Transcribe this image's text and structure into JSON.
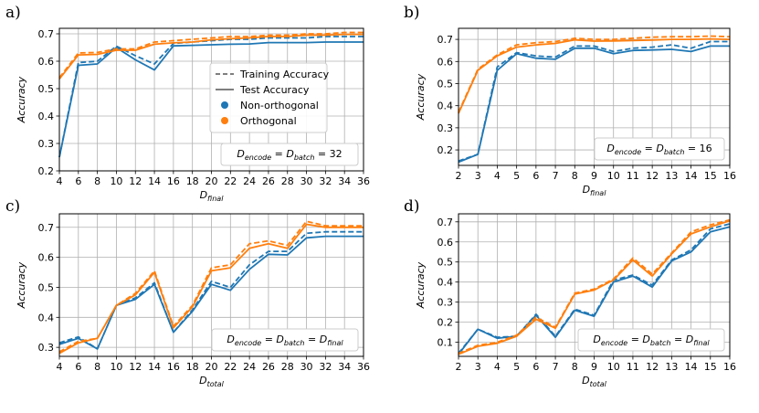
{
  "colors": {
    "blue": "#1f77b4",
    "orange": "#ff7f0e",
    "grid": "#b0b0b0"
  },
  "legend": {
    "training": "Training Accuracy",
    "test": "Test Accuracy",
    "non_orth": "Non-orthogonal",
    "orth": "Orthogonal"
  },
  "chart_data": [
    {
      "type": "line",
      "panel_label": "a)",
      "xlabel": {
        "main": "D",
        "sub": "final"
      },
      "ylabel": "Accuracy",
      "x": [
        4,
        6,
        8,
        10,
        12,
        14,
        16,
        18,
        20,
        22,
        24,
        26,
        28,
        30,
        32,
        34,
        36
      ],
      "xticks": [
        4,
        6,
        8,
        10,
        12,
        14,
        16,
        18,
        20,
        22,
        24,
        26,
        28,
        30,
        32,
        34,
        36
      ],
      "xlim": [
        4,
        36
      ],
      "ylim": [
        0.2,
        0.72
      ],
      "yticks": [
        0.2,
        0.3,
        0.4,
        0.5,
        0.6,
        0.7
      ],
      "ytick_labels": [
        "0.2",
        "0.3",
        "0.4",
        "0.5",
        "0.6",
        "0.7"
      ],
      "annotation": {
        "pre": "D",
        "s1": "encode",
        "mid": " = D",
        "s2": "batch",
        "post": " = 32"
      },
      "show_legend": true,
      "series": [
        {
          "name": "Non-orthogonal Training",
          "color": "blue",
          "dash": true,
          "values": [
            0.25,
            0.595,
            0.6,
            0.655,
            0.62,
            0.59,
            0.665,
            0.67,
            0.675,
            0.68,
            0.68,
            0.685,
            0.685,
            0.685,
            0.69,
            0.69,
            0.69
          ]
        },
        {
          "name": "Non-orthogonal Test",
          "color": "blue",
          "dash": false,
          "values": [
            0.25,
            0.585,
            0.59,
            0.65,
            0.605,
            0.568,
            0.656,
            0.658,
            0.66,
            0.662,
            0.663,
            0.668,
            0.668,
            0.668,
            0.67,
            0.67,
            0.67
          ]
        },
        {
          "name": "Orthogonal Training",
          "color": "orange",
          "dash": true,
          "values": [
            0.54,
            0.63,
            0.632,
            0.645,
            0.645,
            0.67,
            0.675,
            0.68,
            0.685,
            0.69,
            0.69,
            0.695,
            0.695,
            0.7,
            0.7,
            0.705,
            0.705
          ]
        },
        {
          "name": "Orthogonal Test",
          "color": "orange",
          "dash": false,
          "values": [
            0.535,
            0.623,
            0.625,
            0.64,
            0.64,
            0.662,
            0.667,
            0.67,
            0.678,
            0.682,
            0.685,
            0.69,
            0.69,
            0.695,
            0.695,
            0.698,
            0.698
          ]
        }
      ]
    },
    {
      "type": "line",
      "panel_label": "b)",
      "xlabel": {
        "main": "D",
        "sub": "final"
      },
      "ylabel": "Accuracy",
      "x": [
        2,
        3,
        4,
        5,
        6,
        7,
        8,
        9,
        10,
        11,
        12,
        13,
        14,
        15,
        16
      ],
      "xticks": [
        2,
        3,
        4,
        5,
        6,
        7,
        8,
        9,
        10,
        11,
        12,
        13,
        14,
        15,
        16
      ],
      "xlim": [
        2,
        16
      ],
      "ylim": [
        0.13,
        0.75
      ],
      "yticks": [
        0.2,
        0.3,
        0.4,
        0.5,
        0.6,
        0.7
      ],
      "ytick_labels": [
        "0.2",
        "0.3",
        "0.4",
        "0.5",
        "0.6",
        "0.7"
      ],
      "annotation": {
        "pre": "D",
        "s1": "encode",
        "mid": " = D",
        "s2": "batch",
        "post": " = 16"
      },
      "show_legend": false,
      "series": [
        {
          "name": "Non-orthogonal Training",
          "color": "blue",
          "dash": true,
          "values": [
            0.15,
            0.18,
            0.575,
            0.64,
            0.625,
            0.62,
            0.67,
            0.67,
            0.645,
            0.66,
            0.665,
            0.675,
            0.66,
            0.69,
            0.69
          ]
        },
        {
          "name": "Non-orthogonal Test",
          "color": "blue",
          "dash": false,
          "values": [
            0.145,
            0.18,
            0.56,
            0.635,
            0.615,
            0.61,
            0.66,
            0.66,
            0.635,
            0.65,
            0.652,
            0.655,
            0.645,
            0.67,
            0.67
          ]
        },
        {
          "name": "Orthogonal Training",
          "color": "orange",
          "dash": true,
          "values": [
            0.37,
            0.565,
            0.63,
            0.675,
            0.685,
            0.69,
            0.705,
            0.7,
            0.7,
            0.705,
            0.71,
            0.712,
            0.712,
            0.715,
            0.712
          ]
        },
        {
          "name": "Orthogonal Test",
          "color": "orange",
          "dash": false,
          "values": [
            0.365,
            0.56,
            0.625,
            0.665,
            0.675,
            0.682,
            0.698,
            0.692,
            0.693,
            0.695,
            0.697,
            0.7,
            0.7,
            0.702,
            0.7
          ]
        }
      ]
    },
    {
      "type": "line",
      "panel_label": "c)",
      "xlabel": {
        "main": "D",
        "sub": "total"
      },
      "ylabel": "Accuracy",
      "x": [
        4,
        6,
        8,
        10,
        12,
        14,
        16,
        18,
        20,
        22,
        24,
        26,
        28,
        30,
        32,
        34,
        36
      ],
      "xticks": [
        4,
        6,
        8,
        10,
        12,
        14,
        16,
        18,
        20,
        22,
        24,
        26,
        28,
        30,
        32,
        34,
        36
      ],
      "xlim": [
        4,
        36
      ],
      "ylim": [
        0.27,
        0.745
      ],
      "yticks": [
        0.3,
        0.4,
        0.5,
        0.6,
        0.7
      ],
      "ytick_labels": [
        "0.3",
        "0.4",
        "0.5",
        "0.6",
        "0.7"
      ],
      "annotation": {
        "pre": "D",
        "s1": "encode",
        "mid": " = D",
        "s2": "batch",
        "post": " = D",
        "s3": "final"
      },
      "show_legend": false,
      "series": [
        {
          "name": "Non-orthogonal Training",
          "color": "blue",
          "dash": true,
          "values": [
            0.315,
            0.335,
            0.295,
            0.44,
            0.465,
            0.515,
            0.35,
            0.425,
            0.52,
            0.5,
            0.575,
            0.62,
            0.62,
            0.68,
            0.685,
            0.685,
            0.685
          ]
        },
        {
          "name": "Non-orthogonal Test",
          "color": "blue",
          "dash": false,
          "values": [
            0.31,
            0.33,
            0.295,
            0.44,
            0.46,
            0.51,
            0.35,
            0.42,
            0.51,
            0.49,
            0.56,
            0.61,
            0.608,
            0.665,
            0.67,
            0.67,
            0.67
          ]
        },
        {
          "name": "Orthogonal Training",
          "color": "orange",
          "dash": true,
          "values": [
            0.285,
            0.32,
            0.33,
            0.44,
            0.48,
            0.555,
            0.37,
            0.44,
            0.565,
            0.575,
            0.645,
            0.655,
            0.64,
            0.72,
            0.705,
            0.705,
            0.705
          ]
        },
        {
          "name": "Orthogonal Test",
          "color": "orange",
          "dash": false,
          "values": [
            0.28,
            0.315,
            0.33,
            0.44,
            0.475,
            0.55,
            0.365,
            0.435,
            0.555,
            0.565,
            0.63,
            0.645,
            0.63,
            0.71,
            0.7,
            0.7,
            0.7
          ]
        }
      ]
    },
    {
      "type": "line",
      "panel_label": "d)",
      "xlabel": {
        "main": "D",
        "sub": "total"
      },
      "ylabel": "Accuracy",
      "x": [
        2,
        3,
        4,
        5,
        6,
        7,
        8,
        9,
        10,
        11,
        12,
        13,
        14,
        15,
        16
      ],
      "xticks": [
        2,
        3,
        4,
        5,
        6,
        7,
        8,
        9,
        10,
        11,
        12,
        13,
        14,
        15,
        16
      ],
      "xlim": [
        2,
        16
      ],
      "ylim": [
        0.03,
        0.74
      ],
      "yticks": [
        0.1,
        0.2,
        0.3,
        0.4,
        0.5,
        0.6,
        0.7
      ],
      "ytick_labels": [
        "0.1",
        "0.2",
        "0.3",
        "0.4",
        "0.5",
        "0.6",
        "0.7"
      ],
      "annotation": {
        "pre": "D",
        "s1": "encode",
        "mid": " = D",
        "s2": "batch",
        "post": " = D",
        "s3": "final"
      },
      "show_legend": false,
      "series": [
        {
          "name": "Non-orthogonal Training",
          "color": "blue",
          "dash": true,
          "values": [
            0.045,
            0.165,
            0.125,
            0.13,
            0.24,
            0.13,
            0.265,
            0.235,
            0.41,
            0.435,
            0.385,
            0.51,
            0.56,
            0.665,
            0.69
          ]
        },
        {
          "name": "Non-orthogonal Test",
          "color": "blue",
          "dash": false,
          "values": [
            0.04,
            0.165,
            0.12,
            0.13,
            0.235,
            0.125,
            0.26,
            0.23,
            0.4,
            0.43,
            0.375,
            0.505,
            0.55,
            0.65,
            0.675
          ]
        },
        {
          "name": "Orthogonal Training",
          "color": "orange",
          "dash": true,
          "values": [
            0.045,
            0.085,
            0.1,
            0.135,
            0.225,
            0.175,
            0.345,
            0.365,
            0.415,
            0.52,
            0.44,
            0.545,
            0.65,
            0.685,
            0.71
          ]
        },
        {
          "name": "Orthogonal Test",
          "color": "orange",
          "dash": false,
          "values": [
            0.04,
            0.08,
            0.095,
            0.13,
            0.215,
            0.17,
            0.34,
            0.36,
            0.41,
            0.51,
            0.43,
            0.54,
            0.64,
            0.675,
            0.705
          ]
        }
      ]
    }
  ]
}
